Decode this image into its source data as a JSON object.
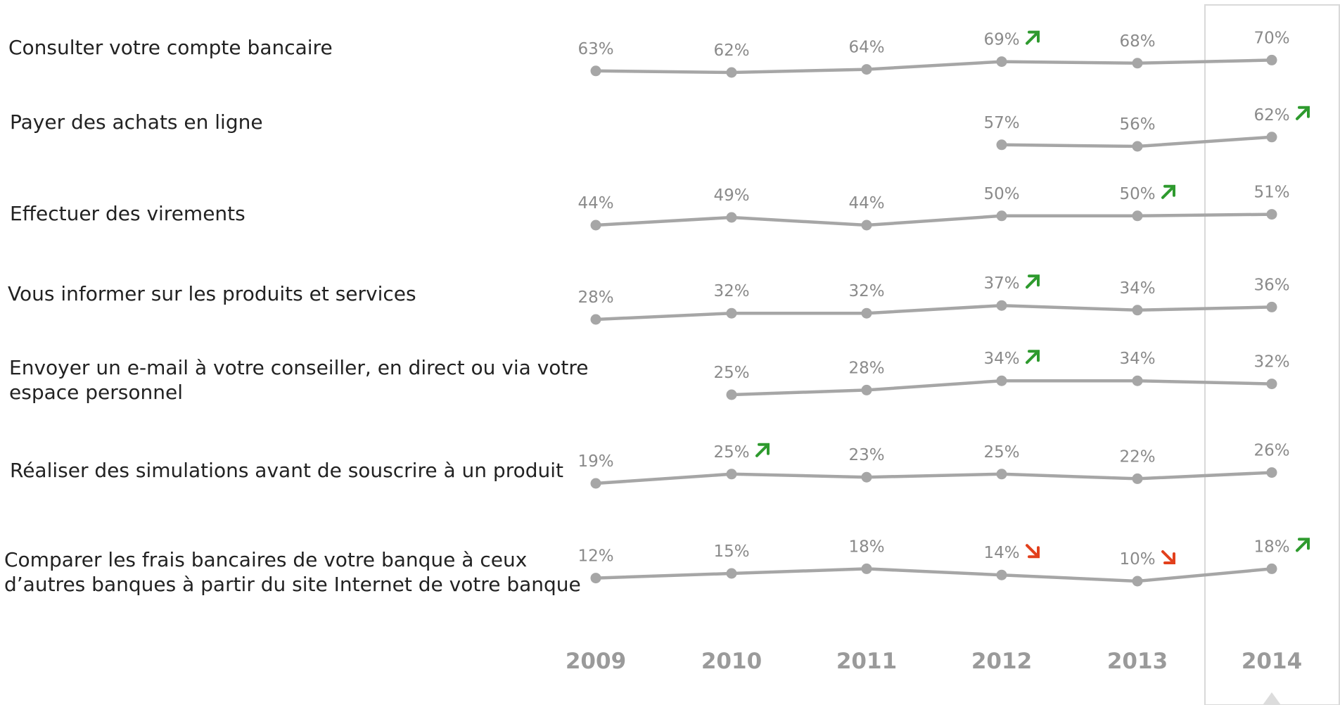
{
  "chart_data": {
    "type": "line",
    "categories": [
      "2009",
      "2010",
      "2011",
      "2012",
      "2013",
      "2014"
    ],
    "highlighted_category": "2014",
    "colors": {
      "line": "#a6a6a6",
      "value_text": "#8a8a8a",
      "year_text": "#9a9a9a",
      "label_text": "#222222",
      "trend_up": "#2e9a2e",
      "trend_down": "#e2401c",
      "highlight_border": "#d9d9d9"
    },
    "series": [
      {
        "name": "Consulter votre compte bancaire",
        "label_lines": [
          "Consulter votre compte bancaire"
        ],
        "values": [
          63,
          62,
          64,
          69,
          68,
          70
        ],
        "value_labels": [
          "63%",
          "62%",
          "64%",
          "69%",
          "68%",
          "70%"
        ],
        "trends": [
          null,
          null,
          null,
          "up",
          null,
          null
        ]
      },
      {
        "name": "Payer des achats en ligne",
        "label_lines": [
          "Payer des achats en ligne"
        ],
        "values": [
          null,
          null,
          null,
          57,
          56,
          62
        ],
        "value_labels": [
          null,
          null,
          null,
          "57%",
          "56%",
          "62%"
        ],
        "trends": [
          null,
          null,
          null,
          null,
          null,
          "up"
        ]
      },
      {
        "name": "Effectuer des virements",
        "label_lines": [
          "Effectuer des virements"
        ],
        "values": [
          44,
          49,
          44,
          50,
          50,
          51
        ],
        "value_labels": [
          "44%",
          "49%",
          "44%",
          "50%",
          "50%",
          "51%"
        ],
        "trends": [
          null,
          null,
          null,
          null,
          "up",
          null
        ]
      },
      {
        "name": "Vous informer sur les produits et services",
        "label_lines": [
          "Vous informer sur les produits et services"
        ],
        "values": [
          28,
          32,
          32,
          37,
          34,
          36
        ],
        "value_labels": [
          "28%",
          "32%",
          "32%",
          "37%",
          "34%",
          "36%"
        ],
        "trends": [
          null,
          null,
          null,
          "up",
          null,
          null
        ]
      },
      {
        "name": "Envoyer un e-mail à votre conseiller, en direct ou via votre espace personnel",
        "label_lines": [
          "Envoyer un e-mail à votre conseiller, en direct ou via votre",
          "espace personnel"
        ],
        "values": [
          null,
          25,
          28,
          34,
          34,
          32
        ],
        "value_labels": [
          null,
          "25%",
          "28%",
          "34%",
          "34%",
          "32%"
        ],
        "trends": [
          null,
          null,
          null,
          "up",
          null,
          null
        ]
      },
      {
        "name": "Réaliser des simulations avant de souscrire à un produit",
        "label_lines": [
          "Réaliser des simulations avant de souscrire à un produit"
        ],
        "values": [
          19,
          25,
          23,
          25,
          22,
          26
        ],
        "value_labels": [
          "19%",
          "25%",
          "23%",
          "25%",
          "22%",
          "26%"
        ],
        "trends": [
          null,
          "up",
          null,
          null,
          null,
          null
        ]
      },
      {
        "name": "Comparer les frais bancaires de votre banque à ceux d’autres banques à partir du site Internet de votre banque",
        "label_lines": [
          "Comparer les frais bancaires de votre banque à ceux",
          "d’autres banques à partir du site Internet de votre banque"
        ],
        "values": [
          12,
          15,
          18,
          14,
          10,
          18
        ],
        "value_labels": [
          "12%",
          "15%",
          "18%",
          "14%",
          "10%",
          "18%"
        ],
        "trends": [
          null,
          null,
          null,
          "down",
          "down",
          "up"
        ]
      }
    ]
  }
}
